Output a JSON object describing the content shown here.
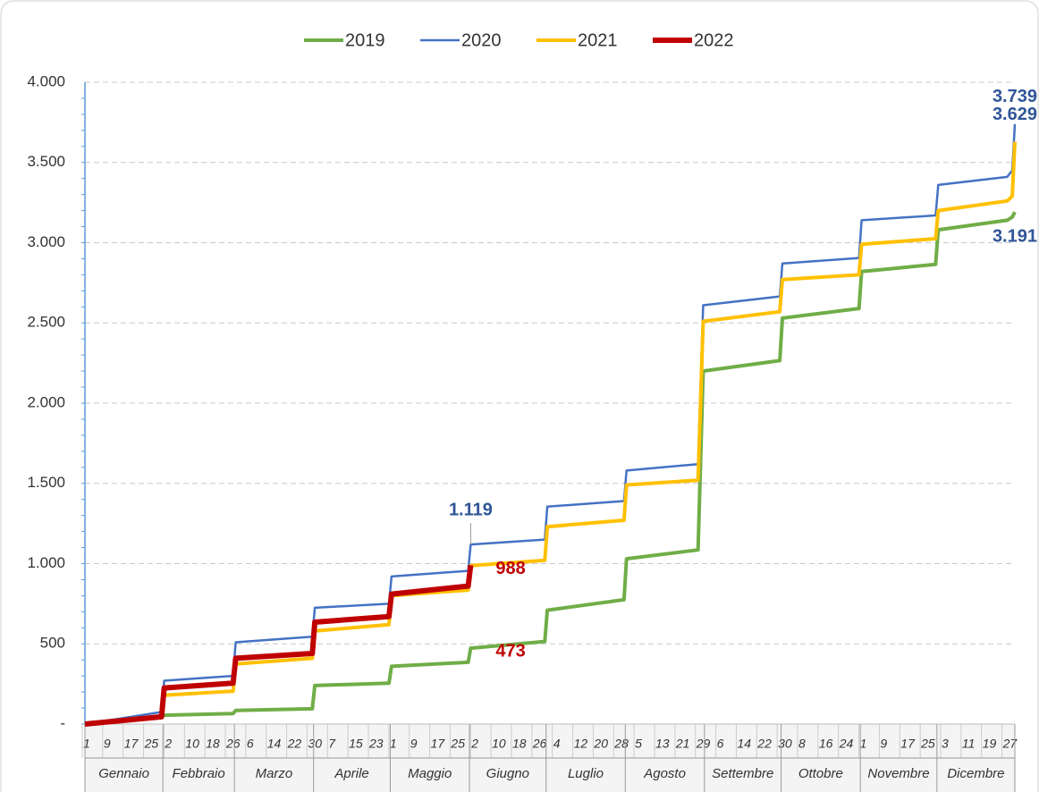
{
  "chart_data": {
    "type": "line",
    "x": [
      1,
      31,
      32,
      59,
      60,
      90,
      91,
      120,
      121,
      151,
      152,
      181,
      182,
      212,
      213,
      241,
      243,
      273,
      274,
      304,
      305,
      334,
      335,
      362,
      364,
      365
    ],
    "xlim": [
      1,
      365
    ],
    "xticks": [
      {
        "value": 1,
        "label": "1"
      },
      {
        "value": 9,
        "label": "9"
      },
      {
        "value": 17,
        "label": "17"
      },
      {
        "value": 25,
        "label": "25"
      },
      {
        "value": 33,
        "label": "2"
      },
      {
        "value": 41,
        "label": "10"
      },
      {
        "value": 49,
        "label": "18"
      },
      {
        "value": 57,
        "label": "26"
      },
      {
        "value": 65,
        "label": "6"
      },
      {
        "value": 73,
        "label": "14"
      },
      {
        "value": 81,
        "label": "22"
      },
      {
        "value": 89,
        "label": "30"
      },
      {
        "value": 97,
        "label": "7"
      },
      {
        "value": 105,
        "label": "15"
      },
      {
        "value": 113,
        "label": "23"
      },
      {
        "value": 121,
        "label": "1"
      },
      {
        "value": 129,
        "label": "9"
      },
      {
        "value": 137,
        "label": "17"
      },
      {
        "value": 145,
        "label": "25"
      },
      {
        "value": 153,
        "label": "2"
      },
      {
        "value": 161,
        "label": "10"
      },
      {
        "value": 169,
        "label": "18"
      },
      {
        "value": 177,
        "label": "26"
      },
      {
        "value": 185,
        "label": "4"
      },
      {
        "value": 193,
        "label": "12"
      },
      {
        "value": 201,
        "label": "20"
      },
      {
        "value": 209,
        "label": "28"
      },
      {
        "value": 217,
        "label": "5"
      },
      {
        "value": 225,
        "label": "13"
      },
      {
        "value": 233,
        "label": "21"
      },
      {
        "value": 241,
        "label": "29"
      },
      {
        "value": 249,
        "label": "6"
      },
      {
        "value": 257,
        "label": "14"
      },
      {
        "value": 265,
        "label": "22"
      },
      {
        "value": 273,
        "label": "30"
      },
      {
        "value": 281,
        "label": "8"
      },
      {
        "value": 289,
        "label": "16"
      },
      {
        "value": 297,
        "label": "24"
      },
      {
        "value": 305,
        "label": "1"
      },
      {
        "value": 313,
        "label": "9"
      },
      {
        "value": 321,
        "label": "17"
      },
      {
        "value": 329,
        "label": "25"
      },
      {
        "value": 337,
        "label": "3"
      },
      {
        "value": 345,
        "label": "11"
      },
      {
        "value": 353,
        "label": "19"
      },
      {
        "value": 361,
        "label": "27"
      }
    ],
    "months": [
      "Gennaio",
      "Febbraio",
      "Marzo",
      "Aprile",
      "Maggio",
      "Giugno",
      "Luglio",
      "Agosto",
      "Settembre",
      "Ottobre",
      "Novembre",
      "Dicembre"
    ],
    "ylim": [
      0,
      4000
    ],
    "yticks": [
      {
        "value": 0,
        "label": "-"
      },
      500,
      {
        "value": 1000,
        "label": "1.000"
      },
      {
        "value": 1500,
        "label": "1.500"
      },
      {
        "value": 2000,
        "label": "2.000"
      },
      {
        "value": 2500,
        "label": "2.500"
      },
      {
        "value": 3000,
        "label": "3.000"
      },
      {
        "value": 3500,
        "label": "3.500"
      },
      {
        "value": 4000,
        "label": "4.000"
      }
    ],
    "grid": true,
    "legend": "top",
    "series": [
      {
        "name": "2019",
        "color": "#70ad47",
        "width": 4,
        "values": [
          0,
          50,
          55,
          65,
          85,
          95,
          240,
          255,
          360,
          385,
          473,
          515,
          710,
          775,
          1030,
          1085,
          2200,
          2265,
          2530,
          2590,
          2820,
          2865,
          3080,
          3140,
          3160,
          3191
        ],
        "value_labels": [
          null,
          null,
          null,
          null,
          null,
          null,
          null,
          null,
          null,
          null,
          "473",
          null,
          null,
          null,
          null,
          null,
          null,
          null,
          null,
          null,
          null,
          null,
          null,
          null,
          null,
          "3.191"
        ],
        "label_colors": [
          null,
          null,
          null,
          null,
          null,
          null,
          null,
          null,
          null,
          null,
          "#c00000",
          null,
          null,
          null,
          null,
          null,
          null,
          null,
          null,
          null,
          null,
          null,
          null,
          null,
          null,
          "#2f5597"
        ]
      },
      {
        "name": "2020",
        "color": "#4472c4",
        "width": 2.5,
        "values": [
          0,
          75,
          270,
          300,
          510,
          545,
          725,
          750,
          920,
          955,
          1119,
          1150,
          1355,
          1390,
          1580,
          1620,
          2610,
          2665,
          2870,
          2905,
          3140,
          3170,
          3360,
          3410,
          3450,
          3739
        ],
        "value_labels": [
          null,
          null,
          null,
          null,
          null,
          null,
          null,
          null,
          null,
          null,
          "1.119",
          null,
          null,
          null,
          null,
          null,
          null,
          null,
          null,
          null,
          null,
          null,
          null,
          null,
          null,
          "3.739"
        ],
        "label_colors": [
          null,
          null,
          null,
          null,
          null,
          null,
          null,
          null,
          null,
          null,
          "#2f5597",
          null,
          null,
          null,
          null,
          null,
          null,
          null,
          null,
          null,
          null,
          null,
          null,
          null,
          null,
          "#2f5597"
        ]
      },
      {
        "name": "2021",
        "color": "#ffc000",
        "width": 4,
        "values": [
          0,
          50,
          180,
          205,
          375,
          410,
          580,
          620,
          800,
          835,
          988,
          1020,
          1230,
          1270,
          1490,
          1520,
          2510,
          2570,
          2770,
          2800,
          2990,
          3025,
          3200,
          3260,
          3290,
          3629
        ],
        "value_labels": [
          null,
          null,
          null,
          null,
          null,
          null,
          null,
          null,
          null,
          null,
          "988",
          null,
          null,
          null,
          null,
          null,
          null,
          null,
          null,
          null,
          null,
          null,
          null,
          null,
          null,
          "3.629"
        ],
        "label_colors": [
          null,
          null,
          null,
          null,
          null,
          null,
          null,
          null,
          null,
          null,
          "#c00000",
          null,
          null,
          null,
          null,
          null,
          null,
          null,
          null,
          null,
          null,
          null,
          null,
          null,
          null,
          "#2f5597"
        ]
      },
      {
        "name": "2022",
        "color": "#c00000",
        "width": 6,
        "values": [
          0,
          45,
          225,
          255,
          410,
          440,
          635,
          670,
          810,
          860,
          990,
          null,
          null,
          null,
          null,
          null,
          null,
          null,
          null,
          null,
          null,
          null,
          null,
          null,
          null,
          null
        ]
      }
    ]
  }
}
